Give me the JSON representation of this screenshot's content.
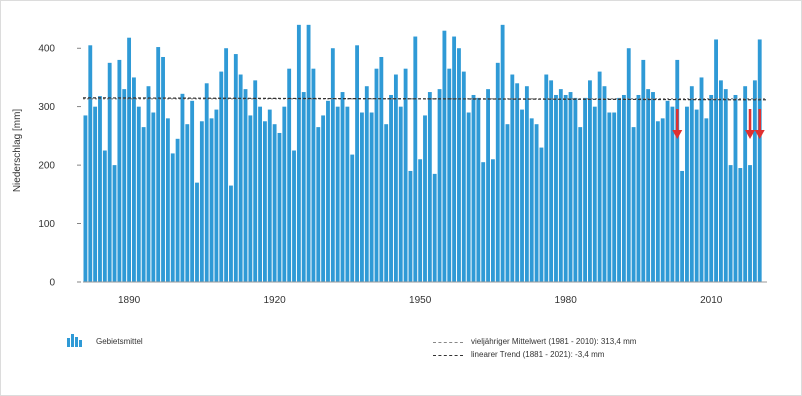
{
  "chart_data": {
    "type": "bar",
    "ylabel": "Niederschlag [mm]",
    "ylim": [
      0,
      450
    ],
    "yticks": [
      0,
      100,
      200,
      300,
      400
    ],
    "xticks": [
      1890,
      1920,
      1950,
      1980,
      2010
    ],
    "x": [
      1881,
      1882,
      1883,
      1884,
      1885,
      1886,
      1887,
      1888,
      1889,
      1890,
      1891,
      1892,
      1893,
      1894,
      1895,
      1896,
      1897,
      1898,
      1899,
      1900,
      1901,
      1902,
      1903,
      1904,
      1905,
      1906,
      1907,
      1908,
      1909,
      1910,
      1911,
      1912,
      1913,
      1914,
      1915,
      1916,
      1917,
      1918,
      1919,
      1920,
      1921,
      1922,
      1923,
      1924,
      1925,
      1926,
      1927,
      1928,
      1929,
      1930,
      1931,
      1932,
      1933,
      1934,
      1935,
      1936,
      1937,
      1938,
      1939,
      1940,
      1941,
      1942,
      1943,
      1944,
      1945,
      1946,
      1947,
      1948,
      1949,
      1950,
      1951,
      1952,
      1953,
      1954,
      1955,
      1956,
      1957,
      1958,
      1959,
      1960,
      1961,
      1962,
      1963,
      1964,
      1965,
      1966,
      1967,
      1968,
      1969,
      1970,
      1971,
      1972,
      1973,
      1974,
      1975,
      1976,
      1977,
      1978,
      1979,
      1980,
      1981,
      1982,
      1983,
      1984,
      1985,
      1986,
      1987,
      1988,
      1989,
      1990,
      1991,
      1992,
      1993,
      1994,
      1995,
      1996,
      1997,
      1998,
      1999,
      2000,
      2001,
      2002,
      2003,
      2004,
      2005,
      2006,
      2007,
      2008,
      2009,
      2010,
      2011,
      2012,
      2013,
      2014,
      2015,
      2016,
      2017,
      2018,
      2019,
      2020,
      2021
    ],
    "values": [
      285,
      405,
      300,
      318,
      225,
      375,
      200,
      380,
      330,
      418,
      350,
      300,
      265,
      335,
      290,
      402,
      385,
      280,
      220,
      245,
      322,
      270,
      310,
      170,
      275,
      340,
      280,
      295,
      360,
      400,
      165,
      390,
      355,
      330,
      285,
      345,
      300,
      275,
      295,
      270,
      255,
      300,
      365,
      225,
      440,
      325,
      440,
      365,
      265,
      285,
      310,
      400,
      300,
      325,
      300,
      218,
      405,
      290,
      335,
      290,
      365,
      385,
      270,
      320,
      355,
      300,
      365,
      190,
      420,
      210,
      285,
      325,
      185,
      330,
      430,
      365,
      420,
      400,
      360,
      290,
      320,
      315,
      205,
      330,
      210,
      375,
      440,
      270,
      355,
      340,
      295,
      335,
      280,
      270,
      230,
      355,
      345,
      320,
      330,
      320,
      325,
      315,
      265,
      315,
      345,
      300,
      360,
      335,
      290,
      290,
      315,
      320,
      400,
      265,
      320,
      380,
      330,
      325,
      275,
      280,
      310,
      300,
      380,
      190,
      300,
      335,
      295,
      350,
      280,
      320,
      415,
      345,
      330,
      200,
      320,
      195,
      335,
      200,
      345,
      415,
      0
    ],
    "series": [
      {
        "name": "Gebietsmittel",
        "color": "#2f9ad6"
      }
    ],
    "mean_value": 313.4,
    "trend_value": -3.4,
    "arrow_years": [
      2003,
      2018,
      2020
    ],
    "arrow_color": "#e03030"
  },
  "legend": {
    "series_label": "Gebietsmittel",
    "mean_label": "vieljähriger Mittelwert (1981 - 2010): 313,4 mm",
    "trend_label": "linearer Trend (1881 - 2021): -3,4 mm"
  }
}
